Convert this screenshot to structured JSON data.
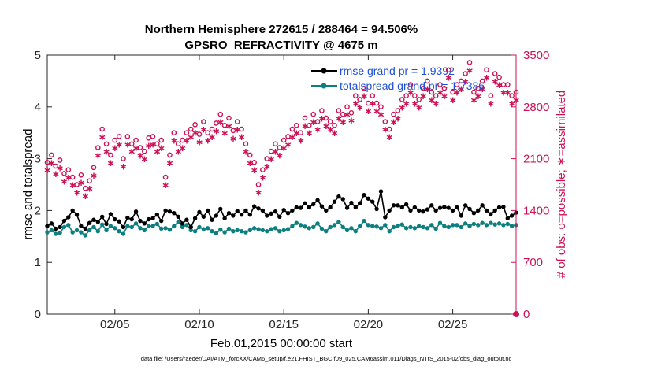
{
  "chart_data": {
    "type": "line",
    "title_line1": "Northern Hemisphere 272615 / 288464 = 94.506%",
    "title_line2": "GPSRO_REFRACTIVITY @ 4675 m",
    "xlabel": "Feb.01,2015 00:00:00 start",
    "ylabel_left": "rmse and totalspread",
    "ylabel_right": "# of obs: o=possible; ∗=assimilated",
    "footer": "data file: /Users/raeder/DAI/ATM_forcXX/CAM6_setup/f.e21.FHIST_BGC.f09_025.CAM6assim.011/Diags_NTrS_2015-02/obs_diag_output.nc",
    "x_ticks": [
      {
        "x": 5,
        "label": "02/05"
      },
      {
        "x": 10,
        "label": "02/10"
      },
      {
        "x": 15,
        "label": "02/15"
      },
      {
        "x": 20,
        "label": "02/20"
      },
      {
        "x": 25,
        "label": "02/25"
      }
    ],
    "y_left_ticks": [
      "0",
      "1",
      "2",
      "3",
      "4",
      "5"
    ],
    "y_right_ticks": [
      "0",
      "700",
      "1400",
      "2100",
      "2800",
      "3500"
    ],
    "xlim": [
      1,
      28.75
    ],
    "ylim_left": [
      0,
      5
    ],
    "ylim_right": [
      0,
      3500
    ],
    "colors": {
      "rmse": "#000000",
      "spread": "#0e7f7f",
      "obs": "#cc1155",
      "legend_text": "#1f4fd6"
    },
    "x_start": 1.0,
    "x_step": 0.25,
    "legend": [
      {
        "name": "rmse grand pr = 1.9392",
        "series": "rmse"
      },
      {
        "name": "totalspread grand pr = 1.7386",
        "series": "spread"
      }
    ],
    "series": [
      {
        "name": "rmse",
        "axis": "left",
        "values": [
          1.7,
          1.75,
          1.65,
          1.68,
          1.8,
          1.87,
          2.0,
          1.92,
          1.7,
          1.65,
          1.76,
          1.82,
          1.78,
          1.88,
          1.74,
          1.93,
          1.83,
          1.79,
          1.68,
          1.86,
          1.83,
          1.98,
          1.8,
          1.75,
          1.83,
          1.85,
          1.92,
          1.8,
          2.0,
          1.98,
          1.95,
          1.88,
          1.75,
          1.82,
          1.68,
          1.85,
          1.97,
          1.88,
          2.0,
          1.82,
          1.9,
          2.03,
          1.85,
          1.95,
          1.9,
          1.99,
          1.92,
          2.0,
          1.92,
          2.08,
          2.04,
          2.0,
          1.9,
          1.94,
          1.98,
          1.88,
          2.01,
          1.95,
          2.0,
          2.06,
          2.05,
          2.14,
          2.06,
          2.12,
          2.2,
          2.08,
          2.0,
          2.06,
          2.17,
          2.27,
          2.22,
          2.05,
          2.15,
          2.06,
          2.14,
          2.3,
          2.23,
          2.17,
          2.03,
          2.37,
          1.87,
          2.0,
          2.1,
          2.1,
          2.06,
          2.12,
          2.0,
          2.06,
          2.0,
          1.98,
          2.02,
          2.1,
          2.0,
          2.05,
          2.07,
          2.05,
          2.0,
          2.06,
          1.9,
          2.1,
          2.03,
          1.95,
          2.0,
          2.1,
          2.0,
          1.93,
          2.0,
          2.06,
          2.07,
          1.85,
          1.9,
          1.96,
          2.06,
          1.96,
          2.0,
          1.94,
          1.95,
          2.14,
          1.98,
          2.0,
          2.09,
          2.05,
          1.82,
          2.12,
          2.07,
          2.05,
          2.04,
          2.0,
          1.95,
          2.22,
          1.95,
          1.92,
          2.0,
          1.94,
          1.92,
          1.87,
          2.02,
          1.92,
          2.05,
          1.96,
          2.0,
          2.12,
          1.8,
          1.96,
          2.16,
          1.98,
          1.82,
          2.02,
          1.95,
          1.94,
          1.91,
          2.0,
          1.95,
          2.08,
          1.88,
          2.0,
          2.03,
          1.82,
          1.93,
          2.0,
          1.92,
          2.04,
          2.0,
          1.97,
          1.94,
          2.0,
          2.1,
          2.0,
          2.07,
          1.96,
          1.98,
          2.05,
          1.84,
          1.8,
          2.03,
          1.96,
          1.93,
          1.85,
          2.01,
          1.94,
          2.05,
          1.9,
          1.97,
          1.85,
          2.03,
          1.83,
          2.01,
          2.07,
          1.92,
          2.0,
          2.1,
          2.16,
          1.94,
          1.85,
          1.96,
          1.83,
          1.98,
          2.13,
          2.05,
          1.96,
          2.0,
          1.88,
          2.03,
          2.0,
          1.85,
          1.98,
          2.02,
          1.96,
          1.95,
          1.98,
          1.96,
          2.0,
          1.96,
          1.94,
          1.92,
          2.0,
          2.05,
          1.95,
          1.96,
          1.98,
          2.04,
          2.12,
          1.98,
          1.97,
          1.95,
          2.06,
          1.92,
          2.03,
          2.0,
          1.95,
          1.8,
          2.0,
          1.97,
          1.98,
          1.85,
          1.92,
          1.98,
          1.96,
          1.86,
          1.9,
          2.0,
          1.96,
          2.05,
          1.88,
          1.92,
          2.0,
          1.85,
          1.96,
          2.1,
          1.97,
          1.91,
          2.01,
          2.15,
          2.0,
          1.92,
          2.0,
          1.86,
          2.0,
          1.95,
          2.22,
          2.1,
          1.98,
          1.94,
          1.75,
          1.95,
          1.9,
          1.97,
          1.89,
          2.05,
          1.96,
          2.0,
          2.05,
          1.96,
          1.97,
          1.95
        ]
      },
      {
        "name": "totalspread",
        "axis": "left",
        "values": [
          1.58,
          1.62,
          1.55,
          1.57,
          1.68,
          1.72,
          1.58,
          1.62,
          1.58,
          1.52,
          1.62,
          1.68,
          1.6,
          1.73,
          1.62,
          1.7,
          1.66,
          1.6,
          1.55,
          1.7,
          1.68,
          1.75,
          1.66,
          1.62,
          1.7,
          1.7,
          1.74,
          1.65,
          1.66,
          1.63,
          1.7,
          1.78,
          1.68,
          1.72,
          1.62,
          1.6,
          1.68,
          1.64,
          1.66,
          1.6,
          1.56,
          1.63,
          1.58,
          1.65,
          1.6,
          1.62,
          1.6,
          1.58,
          1.62,
          1.66,
          1.64,
          1.62,
          1.6,
          1.64,
          1.66,
          1.6,
          1.62,
          1.64,
          1.7,
          1.76,
          1.72,
          1.69,
          1.66,
          1.68,
          1.75,
          1.65,
          1.6,
          1.68,
          1.72,
          1.78,
          1.68,
          1.62,
          1.66,
          1.6,
          1.7,
          1.8,
          1.72,
          1.7,
          1.69,
          1.66,
          1.72,
          1.6,
          1.68,
          1.7,
          1.73,
          1.66,
          1.68,
          1.66,
          1.7,
          1.68,
          1.66,
          1.72,
          1.65,
          1.76,
          1.7,
          1.68,
          1.72,
          1.72,
          1.68,
          1.75,
          1.7,
          1.74,
          1.72,
          1.76,
          1.72,
          1.76,
          1.73,
          1.75,
          1.72,
          1.74,
          1.7,
          1.72,
          1.73,
          1.72,
          1.75,
          1.73,
          1.74,
          1.76,
          1.72,
          1.73,
          1.71,
          1.74,
          1.72,
          1.75,
          1.74,
          1.7,
          1.72,
          1.73,
          1.72,
          1.75,
          1.78,
          1.7,
          1.75,
          1.72,
          1.73,
          1.7,
          1.74,
          1.72,
          1.76,
          1.73,
          1.71,
          1.74,
          1.7,
          1.75,
          1.72,
          1.73,
          1.66,
          1.72,
          1.74,
          1.7,
          1.73,
          1.72,
          1.7,
          1.76,
          1.72,
          1.73,
          1.74,
          1.7,
          1.72,
          1.75,
          1.73,
          1.71,
          1.74,
          1.72,
          1.78,
          1.72,
          1.74,
          1.73,
          1.71,
          1.75,
          1.72,
          1.73,
          1.65,
          1.76,
          1.72,
          1.74,
          1.7,
          1.76,
          1.72,
          1.74,
          1.7,
          1.75,
          1.66,
          1.76,
          1.72,
          1.73,
          1.68,
          1.74,
          1.72,
          1.75,
          1.7,
          1.73,
          1.76,
          1.72,
          1.74,
          1.7,
          1.73,
          1.72,
          1.75,
          1.74,
          1.72,
          1.73,
          1.7,
          1.76,
          1.72,
          1.74,
          1.72,
          1.73,
          1.75,
          1.72,
          1.74,
          1.7,
          1.73,
          1.76,
          1.72,
          1.74,
          1.72,
          1.75,
          1.7,
          1.72,
          1.74,
          1.8,
          1.72,
          1.75,
          1.76,
          1.74,
          1.7,
          1.72,
          1.74,
          1.68,
          1.82,
          1.73,
          1.74,
          1.72,
          1.76,
          1.7,
          1.74,
          1.72,
          1.75,
          1.7,
          1.72,
          1.74,
          1.76,
          1.72,
          1.74,
          1.7,
          1.73,
          1.8,
          1.72,
          1.74,
          1.72,
          1.92,
          1.73,
          1.74,
          1.75,
          1.72,
          1.74,
          1.73,
          1.76,
          1.72,
          1.74,
          1.76,
          1.66,
          1.73,
          1.76,
          1.75,
          1.74,
          1.72,
          1.75,
          1.73,
          1.76,
          1.78,
          1.75,
          1.74
        ]
      },
      {
        "name": "possible",
        "axis": "right",
        "marker": "circle",
        "values": [
          2050,
          2150,
          2000,
          2080,
          1900,
          1950,
          1850,
          1750,
          1880,
          1700,
          1800,
          1980,
          2250,
          2500,
          2300,
          2150,
          2350,
          2400,
          2100,
          2400,
          2300,
          2350,
          2250,
          2200,
          2380,
          2400,
          2300,
          2350,
          1850,
          2150,
          2450,
          2300,
          2350,
          2450,
          2500,
          2560,
          2430,
          2600,
          2450,
          2500,
          2580,
          2700,
          2550,
          2650,
          2480,
          2600,
          2500,
          2300,
          2150,
          2050,
          1750,
          1950,
          2100,
          2200,
          2300,
          2250,
          2350,
          2400,
          2500,
          2550,
          2450,
          2650,
          2550,
          2700,
          2600,
          2750,
          2650,
          2600,
          2550,
          2750,
          2700,
          2800,
          2720,
          2950,
          2900,
          3050,
          2850,
          2950,
          2850,
          2800,
          2600,
          2500,
          2700,
          2750,
          2900,
          2950,
          3100,
          2950,
          2900,
          3050,
          3150,
          3000,
          2950,
          3100,
          3050,
          3300,
          3000,
          3100,
          3150,
          3250,
          3400,
          3000,
          3050,
          3150,
          3300,
          2950,
          3250,
          3200,
          3100,
          3100,
          2950,
          3000,
          2800,
          3300,
          3150,
          3350,
          3200,
          3050,
          3400,
          3050,
          3300,
          3150,
          3200,
          3400,
          3250,
          3150,
          3100,
          3000,
          3200,
          3250,
          3150,
          3300,
          3200,
          2950,
          3100,
          2750,
          2900,
          2800,
          3050,
          2700,
          2650,
          3350,
          3100,
          3050,
          3150,
          3250,
          2950,
          3200,
          3400,
          3300,
          3150,
          3250,
          3100,
          3200,
          3050,
          3000,
          3100,
          3300,
          3150,
          3200,
          3050,
          3250,
          3100,
          3050,
          3150,
          2900,
          3000,
          3100,
          2950,
          3000,
          2700,
          2800,
          2900,
          2750,
          2850,
          2950,
          3050,
          2800,
          2750,
          2600,
          2700,
          2800,
          2950,
          3000,
          2850,
          2750,
          2650,
          2700,
          2600,
          2550,
          2650,
          2700,
          2500,
          2400,
          2300,
          2150,
          2250,
          2100,
          2200,
          2300,
          2400,
          2500,
          2600,
          2700,
          2800,
          2650,
          2550,
          2450,
          2600,
          2750,
          2900,
          3050,
          2950,
          2800,
          2650,
          2700,
          2750,
          2650,
          2600,
          2550,
          2700,
          2800,
          2750,
          2850,
          2750,
          2700,
          2900,
          2800,
          2750,
          2850,
          2900,
          3000,
          2950,
          2900,
          2800,
          2850,
          2900,
          2750,
          2700,
          2650,
          2800,
          2900,
          2850,
          2750,
          2800,
          2900,
          2850,
          2950,
          2900,
          2850,
          2800,
          2750,
          2700,
          2800,
          2850,
          2900,
          2800,
          2850,
          2900,
          2800,
          2750,
          2700,
          2800
        ]
      },
      {
        "name": "assimilated",
        "axis": "right",
        "marker": "star",
        "values": [
          1950,
          2050,
          1900,
          1980,
          1800,
          1850,
          1750,
          1650,
          1780,
          1600,
          1700,
          1880,
          2150,
          2400,
          2200,
          2050,
          2250,
          2300,
          2000,
          2300,
          2200,
          2250,
          2150,
          2100,
          2280,
          2300,
          2200,
          2250,
          1750,
          2050,
          2350,
          2200,
          2250,
          2350,
          2400,
          2460,
          2330,
          2500,
          2350,
          2400,
          2480,
          2600,
          2450,
          2550,
          2380,
          2500,
          2400,
          2200,
          2050,
          1950,
          1650,
          1850,
          2000,
          2100,
          2200,
          2150,
          2250,
          2300,
          2400,
          2450,
          2350,
          2550,
          2450,
          2600,
          2500,
          2650,
          2550,
          2500,
          2450,
          2650,
          2600,
          2700,
          2620,
          2850,
          2800,
          2950,
          2750,
          2850,
          2750,
          2700,
          2500,
          2400,
          2600,
          2650,
          2800,
          2850,
          3000,
          2850,
          2800,
          2950,
          3050,
          2900,
          2850,
          3000,
          2950,
          3200,
          2900,
          3000,
          3050,
          3150,
          3300,
          2900,
          2950,
          3050,
          3200,
          2850,
          3150,
          3100,
          3000,
          3000,
          2850,
          2900,
          2700,
          3200,
          3050,
          3250,
          3100,
          2950,
          3300,
          2950,
          3200,
          3050,
          3100,
          3300,
          3150,
          3050,
          3000,
          2900,
          3100,
          3150,
          3050,
          3200,
          3100,
          2850,
          3000,
          2650,
          2800,
          2700,
          2950,
          2600,
          2550,
          3250,
          3000,
          2950,
          3050,
          3150,
          2850,
          3100,
          3300,
          3200,
          3050,
          3150,
          3000,
          3100,
          2950,
          2900,
          3000,
          3200,
          3050,
          3100,
          2950,
          3150,
          3000,
          2950,
          3050,
          2800,
          2900,
          3000,
          2850,
          2900,
          2600,
          2700,
          2800,
          2650,
          2750,
          2850,
          2950,
          2700,
          2650,
          2500,
          2600,
          2700,
          2850,
          2900,
          2750,
          2650,
          2550,
          2600,
          2500,
          2450,
          2550,
          2600,
          2400,
          2300,
          2200,
          2050,
          2150,
          2000,
          2100,
          2200,
          2300,
          2400,
          2500,
          2600,
          2700,
          2550,
          2450,
          2350,
          2500,
          2650,
          2800,
          2950,
          2850,
          2700,
          2550,
          2600,
          2650,
          2550,
          2500,
          2450,
          2600,
          2700,
          2650,
          2750,
          2650,
          2600,
          2800,
          2700,
          2650,
          2750,
          2800,
          2900,
          2850,
          2800,
          2700,
          2750,
          2800,
          2650,
          2600,
          2550,
          2700,
          2800,
          2750,
          2650,
          2700,
          2800,
          2750,
          2850,
          2800,
          2750,
          2700,
          2650,
          2600,
          2700,
          2750,
          2800,
          2700,
          2750,
          2800,
          2700,
          2650,
          2600,
          2700
        ]
      }
    ]
  }
}
